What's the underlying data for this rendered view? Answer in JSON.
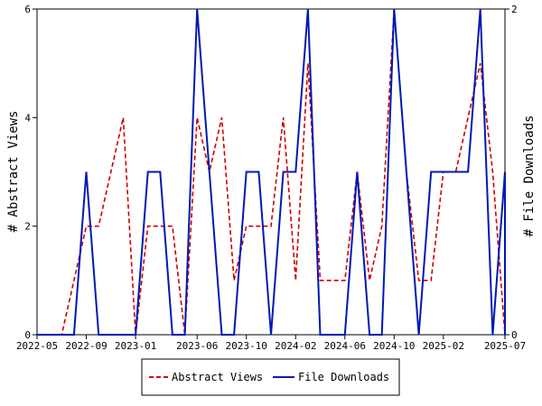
{
  "chart_data": {
    "type": "line",
    "title": "",
    "left_axis": {
      "label": "# Abstract Views",
      "range": [
        0,
        6
      ],
      "ticks": [
        "0",
        "2",
        "4",
        "6"
      ]
    },
    "right_axis": {
      "label": "# File Downloads",
      "range": [
        0,
        2
      ],
      "ticks": [
        "0",
        "2"
      ]
    },
    "x_range": [
      "2022-05",
      "2025-07"
    ],
    "x_tick_labels": [
      "2022-05",
      "2022-09",
      "2023-01",
      "2023-06",
      "2023-10",
      "2024-02",
      "2024-06",
      "2024-10",
      "2025-02",
      "2025-07"
    ],
    "grid": false,
    "legend_position": "bottom-center",
    "series": [
      {
        "name": "Abstract Views",
        "axis": "left",
        "color": "#cc0000",
        "dash": "dashed",
        "points": [
          [
            "2022-05-01",
            0
          ],
          [
            "2022-06-01",
            0
          ],
          [
            "2022-07-01",
            0
          ],
          [
            "2022-08-01",
            1
          ],
          [
            "2022-09-01",
            2
          ],
          [
            "2022-10-01",
            2
          ],
          [
            "2022-11-01",
            3
          ],
          [
            "2022-12-01",
            4
          ],
          [
            "2023-01-01",
            0
          ],
          [
            "2023-02-01",
            2
          ],
          [
            "2023-03-01",
            2
          ],
          [
            "2023-04-01",
            2
          ],
          [
            "2023-05-01",
            0
          ],
          [
            "2023-06-01",
            4
          ],
          [
            "2023-07-01",
            3
          ],
          [
            "2023-08-01",
            4
          ],
          [
            "2023-09-01",
            1
          ],
          [
            "2023-10-01",
            2
          ],
          [
            "2023-11-01",
            2
          ],
          [
            "2023-12-01",
            2
          ],
          [
            "2024-01-01",
            4
          ],
          [
            "2024-02-01",
            1
          ],
          [
            "2024-03-01",
            5
          ],
          [
            "2024-04-01",
            1
          ],
          [
            "2024-05-01",
            1
          ],
          [
            "2024-06-01",
            1
          ],
          [
            "2024-07-01",
            3
          ],
          [
            "2024-08-01",
            1
          ],
          [
            "2024-09-01",
            2
          ],
          [
            "2024-10-01",
            6
          ],
          [
            "2024-11-01",
            3
          ],
          [
            "2024-12-01",
            1
          ],
          [
            "2025-01-01",
            1
          ],
          [
            "2025-02-01",
            3
          ],
          [
            "2025-03-01",
            3
          ],
          [
            "2025-04-01",
            4
          ],
          [
            "2025-05-01",
            5
          ],
          [
            "2025-06-01",
            3
          ],
          [
            "2025-07-01",
            0
          ],
          [
            "2025-08-01",
            1
          ]
        ]
      },
      {
        "name": "File Downloads",
        "axis": "right",
        "color": "#0019b3",
        "dash": "solid",
        "points": [
          [
            "2022-05-01",
            0
          ],
          [
            "2022-06-01",
            0
          ],
          [
            "2022-07-01",
            0
          ],
          [
            "2022-08-01",
            0
          ],
          [
            "2022-09-01",
            1
          ],
          [
            "2022-10-01",
            0
          ],
          [
            "2022-11-01",
            0
          ],
          [
            "2022-12-01",
            0
          ],
          [
            "2023-01-01",
            0
          ],
          [
            "2023-02-01",
            1
          ],
          [
            "2023-03-01",
            1
          ],
          [
            "2023-04-01",
            0
          ],
          [
            "2023-05-01",
            0
          ],
          [
            "2023-06-01",
            2
          ],
          [
            "2023-07-01",
            1
          ],
          [
            "2023-08-01",
            0
          ],
          [
            "2023-09-01",
            0
          ],
          [
            "2023-10-01",
            1
          ],
          [
            "2023-11-01",
            1
          ],
          [
            "2023-12-01",
            0
          ],
          [
            "2024-01-01",
            1
          ],
          [
            "2024-02-01",
            1
          ],
          [
            "2024-03-01",
            2
          ],
          [
            "2024-04-01",
            0
          ],
          [
            "2024-05-01",
            0
          ],
          [
            "2024-06-01",
            0
          ],
          [
            "2024-07-01",
            1
          ],
          [
            "2024-08-01",
            0
          ],
          [
            "2024-09-01",
            0
          ],
          [
            "2024-10-01",
            2
          ],
          [
            "2024-11-01",
            1
          ],
          [
            "2024-12-01",
            0
          ],
          [
            "2025-01-01",
            1
          ],
          [
            "2025-02-01",
            1
          ],
          [
            "2025-03-01",
            1
          ],
          [
            "2025-04-01",
            1
          ],
          [
            "2025-05-01",
            2
          ],
          [
            "2025-06-01",
            0
          ],
          [
            "2025-07-01",
            1
          ],
          [
            "2025-08-01",
            0
          ],
          [
            "2025-09-01",
            0
          ]
        ]
      }
    ]
  }
}
